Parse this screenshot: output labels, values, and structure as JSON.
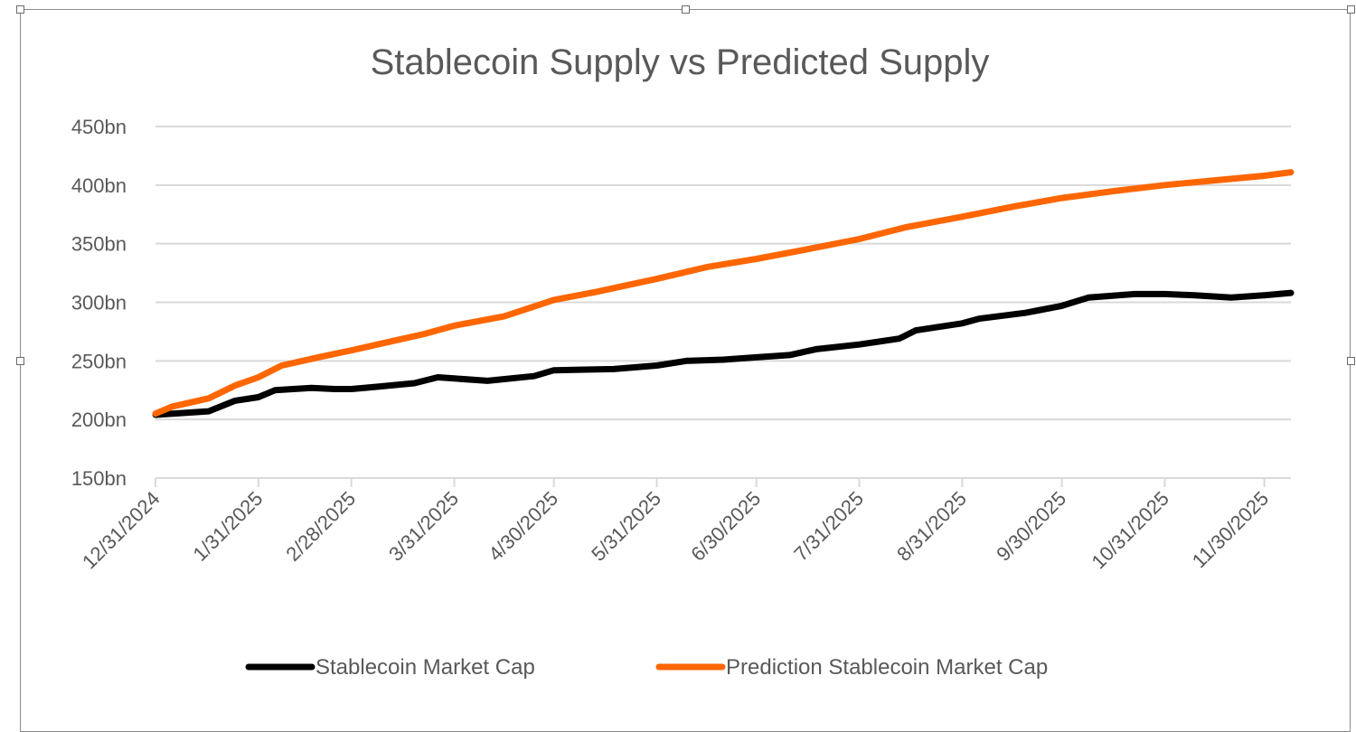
{
  "chart_data": {
    "type": "line",
    "title": "Stablecoin Supply vs Predicted Supply",
    "xlabel": "",
    "ylabel": "",
    "ylim": [
      150,
      450
    ],
    "y_ticks": [
      "150bn",
      "200bn",
      "250bn",
      "300bn",
      "350bn",
      "400bn",
      "450bn"
    ],
    "y_tick_values": [
      150,
      200,
      250,
      300,
      350,
      400,
      450
    ],
    "x_ticks": [
      "12/31/2024",
      "1/31/2025",
      "2/28/2025",
      "3/31/2025",
      "4/30/2025",
      "5/31/2025",
      "6/30/2025",
      "7/31/2025",
      "8/31/2025",
      "9/30/2025",
      "10/31/2025",
      "11/30/2025"
    ],
    "xlim": [
      "12/31/2024",
      "12/8/2025"
    ],
    "grid": true,
    "legend_position": "bottom",
    "series": [
      {
        "name": "Stablecoin Market Cap",
        "color": "#000000",
        "points": [
          [
            "12/31/2024",
            204
          ],
          [
            "1/16/2025",
            207
          ],
          [
            "1/24/2025",
            216
          ],
          [
            "1/31/2025",
            219
          ],
          [
            "2/5/2025",
            225
          ],
          [
            "2/16/2025",
            227
          ],
          [
            "2/23/2025",
            226
          ],
          [
            "2/28/2025",
            226
          ],
          [
            "3/8/2025",
            228
          ],
          [
            "3/19/2025",
            231
          ],
          [
            "3/26/2025",
            236
          ],
          [
            "3/31/2025",
            235
          ],
          [
            "4/10/2025",
            233
          ],
          [
            "4/24/2025",
            237
          ],
          [
            "4/30/2025",
            242
          ],
          [
            "5/18/2025",
            243
          ],
          [
            "5/31/2025",
            246
          ],
          [
            "6/9/2025",
            250
          ],
          [
            "6/20/2025",
            251
          ],
          [
            "6/30/2025",
            253
          ],
          [
            "7/10/2025",
            255
          ],
          [
            "7/18/2025",
            260
          ],
          [
            "7/31/2025",
            264
          ],
          [
            "8/12/2025",
            269
          ],
          [
            "8/17/2025",
            276
          ],
          [
            "8/31/2025",
            282
          ],
          [
            "9/5/2025",
            286
          ],
          [
            "9/19/2025",
            291
          ],
          [
            "9/30/2025",
            297
          ],
          [
            "10/8/2025",
            304
          ],
          [
            "10/22/2025",
            307
          ],
          [
            "10/31/2025",
            307
          ],
          [
            "11/9/2025",
            306
          ],
          [
            "11/20/2025",
            304
          ],
          [
            "11/30/2025",
            306
          ],
          [
            "12/8/2025",
            308
          ]
        ]
      },
      {
        "name": "Prediction Stablecoin Market Cap",
        "color": "#FF6600",
        "points": [
          [
            "12/31/2024",
            205
          ],
          [
            "1/5/2025",
            211
          ],
          [
            "1/16/2025",
            218
          ],
          [
            "1/24/2025",
            229
          ],
          [
            "1/31/2025",
            236
          ],
          [
            "2/7/2025",
            246
          ],
          [
            "2/18/2025",
            253
          ],
          [
            "2/28/2025",
            259
          ],
          [
            "3/11/2025",
            266
          ],
          [
            "3/22/2025",
            273
          ],
          [
            "3/31/2025",
            280
          ],
          [
            "4/15/2025",
            288
          ],
          [
            "4/30/2025",
            302
          ],
          [
            "5/13/2025",
            309
          ],
          [
            "5/31/2025",
            320
          ],
          [
            "6/15/2025",
            330
          ],
          [
            "6/30/2025",
            337
          ],
          [
            "7/15/2025",
            345
          ],
          [
            "7/31/2025",
            354
          ],
          [
            "8/14/2025",
            364
          ],
          [
            "8/31/2025",
            373
          ],
          [
            "9/16/2025",
            382
          ],
          [
            "9/30/2025",
            389
          ],
          [
            "10/16/2025",
            395
          ],
          [
            "10/31/2025",
            400
          ],
          [
            "11/15/2025",
            404
          ],
          [
            "11/30/2025",
            408
          ],
          [
            "12/8/2025",
            411
          ]
        ]
      }
    ]
  }
}
